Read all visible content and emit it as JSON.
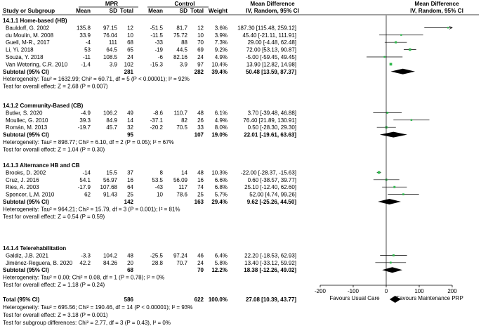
{
  "header": {
    "study_label": "Study or Subgroup",
    "group1": "MPR",
    "group2": "Control",
    "mean": "Mean",
    "sd": "SD",
    "total": "Total",
    "weight": "Weight",
    "md_title": "Mean Difference",
    "md_method": "IV, Random, 95% CI"
  },
  "subgroups": [
    {
      "title": "14.1.1 Home-based (HB)",
      "studies": [
        {
          "name": "Bauldoff, G. 2002",
          "m1": "135.8",
          "sd1": "97.15",
          "n1": "12",
          "m2": "-51.5",
          "sd2": "81.7",
          "n2": "12",
          "weight": "3.6%",
          "ci_text": "187.30 [115.48, 259.12]",
          "md": 187.3,
          "lo": 115.48,
          "hi": 259.12,
          "w": 3.6
        },
        {
          "name": "du Moulin, M. 2008",
          "m1": "33.9",
          "sd1": "76.04",
          "n1": "10",
          "m2": "-11.5",
          "sd2": "75.72",
          "n2": "10",
          "weight": "3.9%",
          "ci_text": "45.40 [-21.11, 111.91]",
          "md": 45.4,
          "lo": -21.11,
          "hi": 111.91,
          "w": 3.9
        },
        {
          "name": "Guell, M-R., 2017",
          "m1": "-4",
          "sd1": "111",
          "n1": "68",
          "m2": "-33",
          "sd2": "88",
          "n2": "70",
          "weight": "7.3%",
          "ci_text": "29.00 [-4.48, 62.48]",
          "md": 29.0,
          "lo": -4.48,
          "hi": 62.48,
          "w": 7.3
        },
        {
          "name": "Li, Yi. 2018",
          "m1": "53",
          "sd1": "64.5",
          "n1": "65",
          "m2": "-19",
          "sd2": "44.5",
          "n2": "69",
          "weight": "9.2%",
          "ci_text": "72.00 [53.13, 90.87]",
          "md": 72.0,
          "lo": 53.13,
          "hi": 90.87,
          "w": 9.2
        },
        {
          "name": "Souza, Y. 2018",
          "m1": "-11",
          "sd1": "108.5",
          "n1": "24",
          "m2": "-6",
          "sd2": "82.16",
          "n2": "24",
          "weight": "4.9%",
          "ci_text": "-5.00 [-59.45, 49.45]",
          "md": -5.0,
          "lo": -59.45,
          "hi": 49.45,
          "w": 4.9
        },
        {
          "name": "Van Wetering, C.R. 2010",
          "m1": "-1.4",
          "sd1": "3.9",
          "n1": "102",
          "m2": "-15.3",
          "sd2": "3.9",
          "n2": "97",
          "weight": "10.4%",
          "ci_text": "13.90 [12.82, 14.98]",
          "md": 13.9,
          "lo": 12.82,
          "hi": 14.98,
          "w": 10.4
        }
      ],
      "subtotal": {
        "label": "Subtotal (95% CI)",
        "n1": "281",
        "n2": "282",
        "weight": "39.4%",
        "ci_text": "50.48 [13.59, 87.37]",
        "md": 50.48,
        "lo": 13.59,
        "hi": 87.37
      },
      "heterogeneity": "Heterogeneity: Tau² = 1632.99; Chi² = 60.71, df = 5 (P < 0.00001); I² = 92%",
      "overall_effect": "Test for overall effect: Z = 2.68 (P = 0.007)"
    },
    {
      "title": "14.1.2 Community-Based (CB)",
      "studies": [
        {
          "name": "Butler, S. 2020",
          "m1": "-4.9",
          "sd1": "106.2",
          "n1": "49",
          "m2": "-8.6",
          "sd2": "110.7",
          "n2": "48",
          "weight": "6.1%",
          "ci_text": "3.70 [-39.48, 46.88]",
          "md": 3.7,
          "lo": -39.48,
          "hi": 46.88,
          "w": 6.1
        },
        {
          "name": "Moullec, G. 2010",
          "m1": "39.3",
          "sd1": "84.9",
          "n1": "14",
          "m2": "-37.1",
          "sd2": "82",
          "n2": "26",
          "weight": "4.9%",
          "ci_text": "76.40 [21.89, 130.91]",
          "md": 76.4,
          "lo": 21.89,
          "hi": 130.91,
          "w": 4.9
        },
        {
          "name": "Román, M. 2013",
          "m1": "-19.7",
          "sd1": "45.7",
          "n1": "32",
          "m2": "-20.2",
          "sd2": "70.5",
          "n2": "33",
          "weight": "8.0%",
          "ci_text": "0.50 [-28.30, 29.30]",
          "md": 0.5,
          "lo": -28.3,
          "hi": 29.3,
          "w": 8.0
        }
      ],
      "subtotal": {
        "label": "Subtotal (95% CI)",
        "n1": "95",
        "n2": "107",
        "weight": "19.0%",
        "ci_text": "22.01 [-19.61, 63.63]",
        "md": 22.01,
        "lo": -19.61,
        "hi": 63.63
      },
      "heterogeneity": "Heterogeneity: Tau² = 898.77; Chi² = 6.10, df = 2 (P = 0.05); I² = 67%",
      "overall_effect": "Test for overall effect: Z = 1.04 (P = 0.30)"
    },
    {
      "title": "14.1.3 Alternance HB and CB",
      "studies": [
        {
          "name": "Brooks, D. 2002",
          "m1": "-14",
          "sd1": "15.5",
          "n1": "37",
          "m2": "8",
          "sd2": "14",
          "n2": "48",
          "weight": "10.3%",
          "ci_text": "-22.00 [-28.37, -15.63]",
          "md": -22.0,
          "lo": -28.37,
          "hi": -15.63,
          "w": 10.3
        },
        {
          "name": "Cruz, J. 2016",
          "m1": "54.1",
          "sd1": "56.97",
          "n1": "16",
          "m2": "53.5",
          "sd2": "56.09",
          "n2": "16",
          "weight": "6.6%",
          "ci_text": "0.60 [-38.57, 39.77]",
          "md": 0.6,
          "lo": -38.57,
          "hi": 39.77,
          "w": 6.6
        },
        {
          "name": "Ries, A. 2003",
          "m1": "-17.9",
          "sd1": "107.68",
          "n1": "64",
          "m2": "-43",
          "sd2": "117",
          "n2": "74",
          "weight": "6.8%",
          "ci_text": "25.10 [-12.40, 62.60]",
          "md": 25.1,
          "lo": -12.4,
          "hi": 62.6,
          "w": 6.8
        },
        {
          "name": "Spencer, L.M. 2010",
          "m1": "62",
          "sd1": "91.43",
          "n1": "25",
          "m2": "10",
          "sd2": "78.6",
          "n2": "25",
          "weight": "5.7%",
          "ci_text": "52.00 [4.74, 99.26]",
          "md": 52.0,
          "lo": 4.74,
          "hi": 99.26,
          "w": 5.7
        }
      ],
      "subtotal": {
        "label": "Subtotal (95% CI)",
        "n1": "142",
        "n2": "163",
        "weight": "29.4%",
        "ci_text": "9.62 [-25.26, 44.50]",
        "md": 9.62,
        "lo": -25.26,
        "hi": 44.5
      },
      "heterogeneity": "Heterogeneity: Tau² = 964.21; Chi² = 15.79, df = 3 (P = 0.001); I² = 81%",
      "overall_effect": "Test for overall effect: Z = 0.54 (P = 0.59)"
    },
    {
      "title": "14.1.4 Telerehabilitation",
      "studies": [
        {
          "name": "Galdiz, J.B. 2021",
          "m1": "-3.3",
          "sd1": "104.2",
          "n1": "48",
          "m2": "-25.5",
          "sd2": "97.24",
          "n2": "46",
          "weight": "6.4%",
          "ci_text": "22.20 [-18.53, 62.93]",
          "md": 22.2,
          "lo": -18.53,
          "hi": 62.93,
          "w": 6.4
        },
        {
          "name": "Jiménez-Reguera, B. 2020",
          "m1": "42.2",
          "sd1": "84.26",
          "n1": "20",
          "m2": "28.8",
          "sd2": "70.7",
          "n2": "24",
          "weight": "5.8%",
          "ci_text": "13.40 [-33.12, 59.92]",
          "md": 13.4,
          "lo": -33.12,
          "hi": 59.92,
          "w": 5.8
        }
      ],
      "subtotal": {
        "label": "Subtotal (95% CI)",
        "n1": "68",
        "n2": "70",
        "weight": "12.2%",
        "ci_text": "18.38 [-12.26, 49.02]",
        "md": 18.38,
        "lo": -12.26,
        "hi": 49.02
      },
      "heterogeneity": "Heterogeneity: Tau² = 0.00; Chi² = 0.08, df = 1 (P = 0.78); I² = 0%",
      "overall_effect": "Test for overall effect: Z = 1.18 (P = 0.24)"
    }
  ],
  "total": {
    "label": "Total (95% CI)",
    "n1": "586",
    "n2": "622",
    "weight": "100.0%",
    "ci_text": "27.08 [10.39, 43.77]",
    "md": 27.08,
    "lo": 10.39,
    "hi": 43.77,
    "heterogeneity": "Heterogeneity: Tau² = 695.56; Chi² = 190.46, df = 14 (P < 0.00001); I² = 93%",
    "overall_effect": "Test for overall effect: Z = 3.18 (P = 0.001)",
    "subgroup_diff": "Test for subgroup differences: Chi² = 2.77, df = 3 (P = 0.43), I² = 0%"
  },
  "chart_data": {
    "type": "forest",
    "title": "Mean Difference IV, Random, 95% CI",
    "x_ticks": [
      -200,
      -100,
      0,
      100,
      200
    ],
    "x_tick_labels": [
      "-200",
      "-100",
      "0",
      "100",
      "200"
    ],
    "xlim": [
      -200,
      200
    ],
    "left_label": "Favours Usual Care",
    "right_label": "Favours Maintenance PRP"
  },
  "colors": {
    "square": "#2db84b",
    "diamond": "#000000",
    "line": "#000000"
  }
}
